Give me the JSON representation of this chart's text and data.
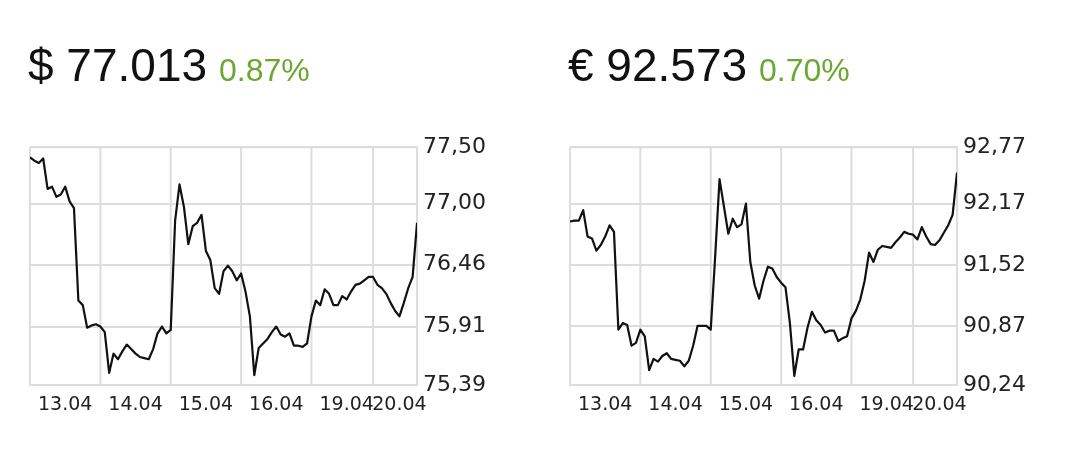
{
  "chart_data": [
    {
      "type": "line",
      "title": "$ 77.013",
      "subtitle": "0.87%",
      "ylim": [
        75.39,
        77.5
      ],
      "categories": [
        null,
        null,
        null,
        null,
        null,
        null,
        null,
        null,
        "13.04",
        null,
        null,
        null,
        null,
        null,
        null,
        null,
        null,
        null,
        null,
        null,
        null,
        null,
        null,
        null,
        "14.04",
        null,
        null,
        null,
        null,
        null,
        null,
        null,
        null,
        null,
        null,
        null,
        null,
        null,
        null,
        null,
        "15.04",
        null,
        null,
        null,
        null,
        null,
        null,
        null,
        null,
        null,
        null,
        null,
        null,
        null,
        null,
        null,
        "16.04",
        null,
        null,
        null,
        null,
        null,
        null,
        null,
        null,
        null,
        null,
        null,
        null,
        null,
        null,
        null,
        "19.04",
        null,
        null,
        null,
        null,
        null,
        null,
        null,
        null,
        null,
        null,
        null,
        "20.04",
        null,
        null,
        null,
        null
      ],
      "yticks": [
        {
          "value": 75.39,
          "label": "75,39"
        },
        {
          "value": 75.91,
          "label": "75,91"
        },
        {
          "value": 76.46,
          "label": "76,46"
        },
        {
          "value": 77.0,
          "label": "77,00"
        },
        {
          "value": 77.5,
          "label": "77,50"
        }
      ],
      "grid": true,
      "legend": false,
      "marker": "none",
      "line_style": "solid",
      "series": [
        {
          "color": "#111111",
          "values": [
            77.41,
            77.38,
            77.36,
            77.4,
            77.13,
            77.15,
            77.06,
            77.08,
            77.15,
            77.02,
            76.96,
            76.14,
            76.1,
            75.9,
            75.92,
            75.93,
            75.91,
            75.86,
            75.5,
            75.67,
            75.62,
            75.69,
            75.75,
            75.71,
            75.67,
            75.64,
            75.63,
            75.62,
            75.71,
            75.85,
            75.91,
            75.85,
            75.88,
            76.85,
            77.17,
            76.97,
            76.64,
            76.8,
            76.83,
            76.9,
            76.58,
            76.5,
            76.25,
            76.2,
            76.4,
            76.45,
            76.4,
            76.32,
            76.38,
            76.22,
            76.0,
            75.48,
            75.72,
            75.76,
            75.8,
            75.86,
            75.91,
            75.84,
            75.82,
            75.85,
            75.74,
            75.74,
            75.73,
            75.76,
            76.0,
            76.14,
            76.1,
            76.24,
            76.2,
            76.1,
            76.1,
            76.18,
            76.15,
            76.22,
            76.28,
            76.29,
            76.32,
            76.35,
            76.35,
            76.28,
            76.25,
            76.2,
            76.12,
            76.05,
            76.0,
            76.12,
            76.25,
            76.35,
            76.83
          ]
        }
      ]
    },
    {
      "type": "line",
      "title": "€ 92.573",
      "subtitle": "0.70%",
      "ylim": [
        90.24,
        92.77
      ],
      "categories": [
        null,
        null,
        null,
        null,
        null,
        null,
        null,
        null,
        "13.04",
        null,
        null,
        null,
        null,
        null,
        null,
        null,
        null,
        null,
        null,
        null,
        null,
        null,
        null,
        null,
        "14.04",
        null,
        null,
        null,
        null,
        null,
        null,
        null,
        null,
        null,
        null,
        null,
        null,
        null,
        null,
        null,
        "15.04",
        null,
        null,
        null,
        null,
        null,
        null,
        null,
        null,
        null,
        null,
        null,
        null,
        null,
        null,
        null,
        "16.04",
        null,
        null,
        null,
        null,
        null,
        null,
        null,
        null,
        null,
        null,
        null,
        null,
        null,
        null,
        null,
        "19.04",
        null,
        null,
        null,
        null,
        null,
        null,
        null,
        null,
        null,
        null,
        null,
        "20.04",
        null,
        null,
        null,
        null
      ],
      "yticks": [
        {
          "value": 90.24,
          "label": "90,24"
        },
        {
          "value": 90.87,
          "label": "90,87"
        },
        {
          "value": 91.52,
          "label": "91,52"
        },
        {
          "value": 92.17,
          "label": "92,17"
        },
        {
          "value": 92.77,
          "label": "92,77"
        }
      ],
      "grid": true,
      "legend": false,
      "marker": "none",
      "line_style": "solid",
      "series": [
        {
          "color": "#111111",
          "values": [
            91.98,
            91.99,
            91.99,
            92.1,
            91.82,
            91.8,
            91.67,
            91.73,
            91.82,
            91.94,
            91.87,
            90.83,
            90.9,
            90.88,
            90.66,
            90.69,
            90.83,
            90.76,
            90.4,
            90.52,
            90.49,
            90.55,
            90.58,
            90.52,
            90.51,
            90.5,
            90.44,
            90.5,
            90.66,
            90.87,
            90.87,
            90.87,
            90.83,
            91.6,
            92.43,
            92.14,
            91.85,
            92.01,
            91.92,
            91.95,
            92.17,
            91.55,
            91.3,
            91.16,
            91.35,
            91.5,
            91.48,
            91.39,
            91.33,
            91.28,
            90.9,
            90.34,
            90.62,
            90.62,
            90.85,
            91.02,
            90.93,
            90.88,
            90.8,
            90.82,
            90.82,
            90.71,
            90.74,
            90.76,
            90.95,
            91.03,
            91.15,
            91.35,
            91.65,
            91.55,
            91.68,
            91.72,
            91.71,
            91.7,
            91.76,
            91.81,
            91.87,
            91.85,
            91.84,
            91.79,
            91.92,
            91.82,
            91.74,
            91.73,
            91.78,
            91.86,
            91.94,
            92.05,
            92.5
          ]
        }
      ]
    }
  ]
}
